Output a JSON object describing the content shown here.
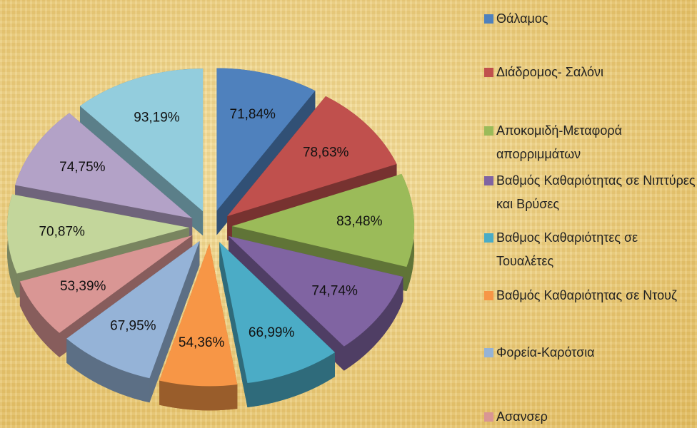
{
  "chart_data": {
    "type": "pie",
    "categories": [
      "Θάλαμος",
      "Διάδρομος- Σαλόνι",
      "Αποκομιδή-Μεταφορά απορριμμάτων",
      "Βαθμός Καθαριότητας σε Νιπτύρες και Βρύσες",
      "Βαθμος Καθαριότητες σε Τουαλέτες",
      "Βαθμός Καθαριότητας σε Ντουζ",
      "Φορεία-Καρότσια",
      "Ασανσερ",
      null,
      null,
      null
    ],
    "values": [
      71.84,
      78.63,
      83.48,
      74.74,
      66.99,
      54.36,
      67.95,
      53.39,
      70.87,
      74.75,
      93.19
    ],
    "value_labels": [
      "71,84%",
      "78,63%",
      "83,48%",
      "74,74%",
      "66,99%",
      "54,36%",
      "67,95%",
      "53,39%",
      "70,87%",
      "74,75%",
      "93,19%"
    ],
    "colors": [
      "#4f81bd",
      "#c0504d",
      "#9bbb59",
      "#8064a2",
      "#4bacc6",
      "#f79646",
      "#95b3d7",
      "#d99694",
      "#c3d69b",
      "#b3a2c7",
      "#93cddd"
    ]
  }
}
